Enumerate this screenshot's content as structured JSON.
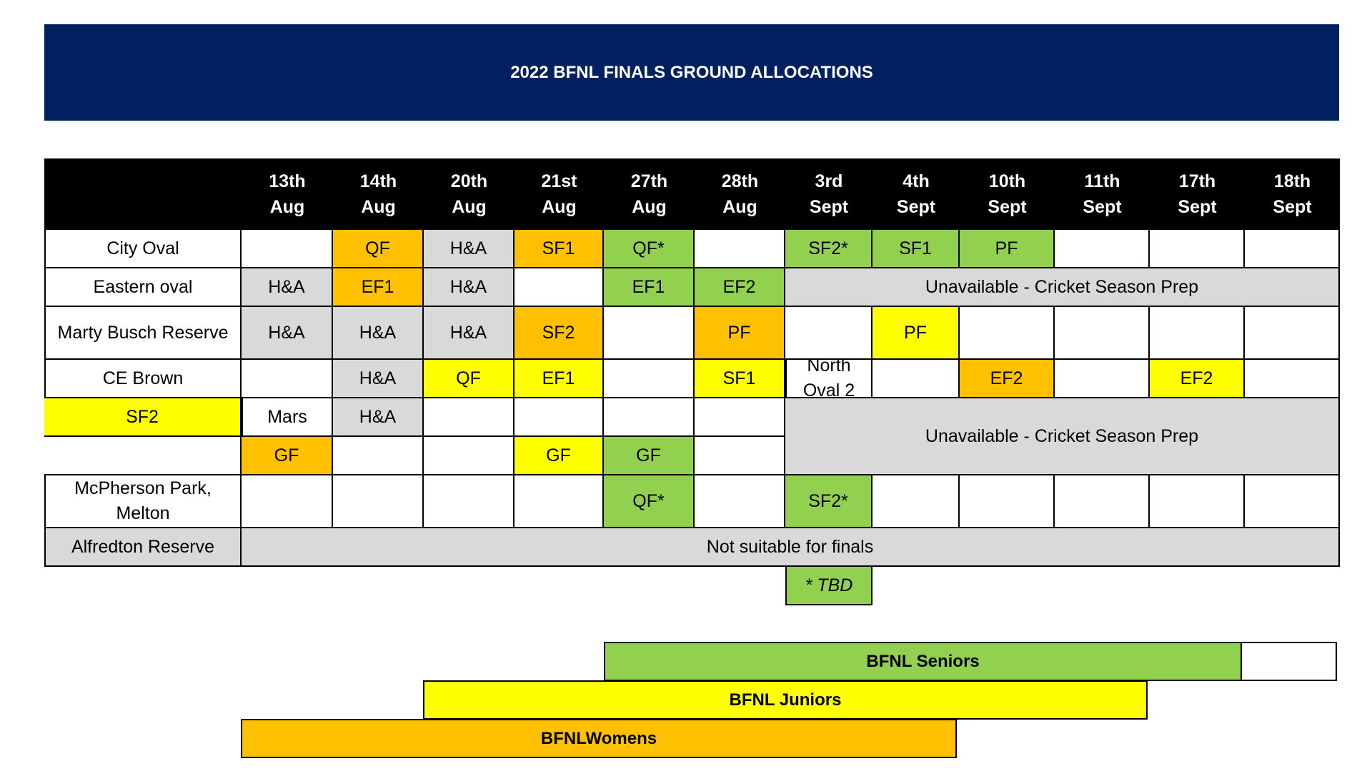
{
  "title": "2022 BFNL FINALS GROUND ALLOCATIONS",
  "header": {
    "dates": [
      {
        "day": "13th",
        "month": "Aug"
      },
      {
        "day": "14th",
        "month": "Aug"
      },
      {
        "day": "20th",
        "month": "Aug"
      },
      {
        "day": "21st",
        "month": "Aug"
      },
      {
        "day": "27th",
        "month": "Aug"
      },
      {
        "day": "28th",
        "month": "Aug"
      },
      {
        "day": "3rd",
        "month": "Sept"
      },
      {
        "day": "4th",
        "month": "Sept"
      },
      {
        "day": "10th",
        "month": "Sept"
      },
      {
        "day": "11th",
        "month": "Sept"
      },
      {
        "day": "17th",
        "month": "Sept"
      },
      {
        "day": "18th",
        "month": "Sept"
      }
    ]
  },
  "grounds": [
    {
      "name": "City Oval",
      "cells": [
        {
          "text": "",
          "fill": "white"
        },
        {
          "text": "QF",
          "fill": "orange"
        },
        {
          "text": "H&A",
          "fill": "grey"
        },
        {
          "text": "SF1",
          "fill": "orange"
        },
        {
          "text": "QF*",
          "fill": "green"
        },
        {
          "text": "",
          "fill": "white"
        },
        {
          "text": "SF2*",
          "fill": "green"
        },
        {
          "text": "SF1",
          "fill": "green"
        },
        {
          "text": "PF",
          "fill": "green"
        },
        {
          "text": "",
          "fill": "white"
        },
        {
          "text": "",
          "fill": "white"
        },
        {
          "text": "",
          "fill": "white"
        }
      ]
    },
    {
      "name": "Eastern oval",
      "cells": [
        {
          "text": "H&A",
          "fill": "grey"
        },
        {
          "text": "EF1",
          "fill": "orange"
        },
        {
          "text": "H&A",
          "fill": "grey"
        },
        {
          "text": "",
          "fill": "white"
        },
        {
          "text": "EF1",
          "fill": "green"
        },
        {
          "text": "EF2",
          "fill": "green"
        }
      ],
      "span_note": "Unavailable - Cricket Season Prep"
    },
    {
      "name": "Marty Busch Reserve",
      "cells": [
        {
          "text": "H&A",
          "fill": "grey"
        },
        {
          "text": "H&A",
          "fill": "grey"
        },
        {
          "text": "H&A",
          "fill": "grey"
        },
        {
          "text": "SF2",
          "fill": "orange"
        },
        {
          "text": "",
          "fill": "white"
        },
        {
          "text": "PF",
          "fill": "orange"
        },
        {
          "text": "",
          "fill": "white"
        },
        {
          "text": "PF",
          "fill": "yellow"
        },
        {
          "text": "",
          "fill": "white"
        },
        {
          "text": "",
          "fill": "white"
        },
        {
          "text": "",
          "fill": "white"
        },
        {
          "text": "",
          "fill": "white"
        }
      ]
    },
    {
      "name": "CE Brown",
      "cells": [
        {
          "text": "",
          "fill": "white"
        },
        {
          "text": "H&A",
          "fill": "grey"
        },
        {
          "text": "QF",
          "fill": "yellow"
        },
        {
          "text": "EF1",
          "fill": "yellow"
        },
        {
          "text": "",
          "fill": "white"
        },
        {
          "text": "SF1",
          "fill": "yellow"
        }
      ]
    },
    {
      "name": "North Oval 2",
      "cells": [
        {
          "text": "",
          "fill": "white"
        },
        {
          "text": "EF2",
          "fill": "orange"
        },
        {
          "text": "",
          "fill": "white"
        },
        {
          "text": "EF2",
          "fill": "yellow"
        },
        {
          "text": "",
          "fill": "white"
        },
        {
          "text": "SF2",
          "fill": "yellow"
        }
      ]
    },
    {
      "name": "Mars",
      "cells": [
        {
          "text": "H&A",
          "fill": "grey"
        },
        {
          "text": "",
          "fill": "white"
        },
        {
          "text": "",
          "fill": "white"
        },
        {
          "text": "",
          "fill": "white"
        },
        {
          "text": "",
          "fill": "white"
        },
        {
          "text": "",
          "fill": "white"
        },
        {
          "text": "GF",
          "fill": "orange"
        },
        {
          "text": "",
          "fill": "white"
        },
        {
          "text": "",
          "fill": "white"
        },
        {
          "text": "GF",
          "fill": "yellow"
        },
        {
          "text": "GF",
          "fill": "green"
        },
        {
          "text": "",
          "fill": "white"
        }
      ]
    },
    {
      "name": "McPherson Park, Melton",
      "cells": [
        {
          "text": "",
          "fill": "white"
        },
        {
          "text": "",
          "fill": "white"
        },
        {
          "text": "",
          "fill": "white"
        },
        {
          "text": "",
          "fill": "white"
        },
        {
          "text": "QF*",
          "fill": "green"
        },
        {
          "text": "",
          "fill": "white"
        },
        {
          "text": "SF2*",
          "fill": "green"
        },
        {
          "text": "",
          "fill": "white"
        },
        {
          "text": "",
          "fill": "white"
        },
        {
          "text": "",
          "fill": "white"
        },
        {
          "text": "",
          "fill": "white"
        },
        {
          "text": "",
          "fill": "white"
        }
      ]
    },
    {
      "name": "Alfredton Reserve",
      "span_note": "Not suitable for finals"
    }
  ],
  "merged_note_ce_north": "Unavailable - Cricket Season Prep",
  "footnote": "*  TBD",
  "legend": [
    {
      "label": "BFNL Seniors",
      "fill": "#92d050"
    },
    {
      "label": "BFNL Juniors",
      "fill": "#ffff00"
    },
    {
      "label": "BFNLWomens",
      "fill": "#ffc000"
    }
  ],
  "colors": {
    "banner": "#002060",
    "header": "#000000",
    "grey": "#d9d9d9",
    "orange": "#ffc000",
    "yellow": "#ffff00",
    "green": "#92d050"
  }
}
